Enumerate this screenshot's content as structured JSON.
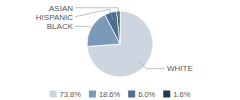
{
  "chart_data": {
    "type": "pie",
    "categories": [
      "WHITE",
      "BLACK",
      "HISPANIC",
      "ASIAN"
    ],
    "values": [
      73.8,
      18.6,
      6.0,
      1.6
    ],
    "value_labels": [
      "73.8%",
      "18.6%",
      "6.0%",
      "1.6%"
    ],
    "colors": [
      "#cdd5e0",
      "#7a99b8",
      "#4d6e8e",
      "#1e3a56"
    ],
    "legend": "bottom"
  }
}
